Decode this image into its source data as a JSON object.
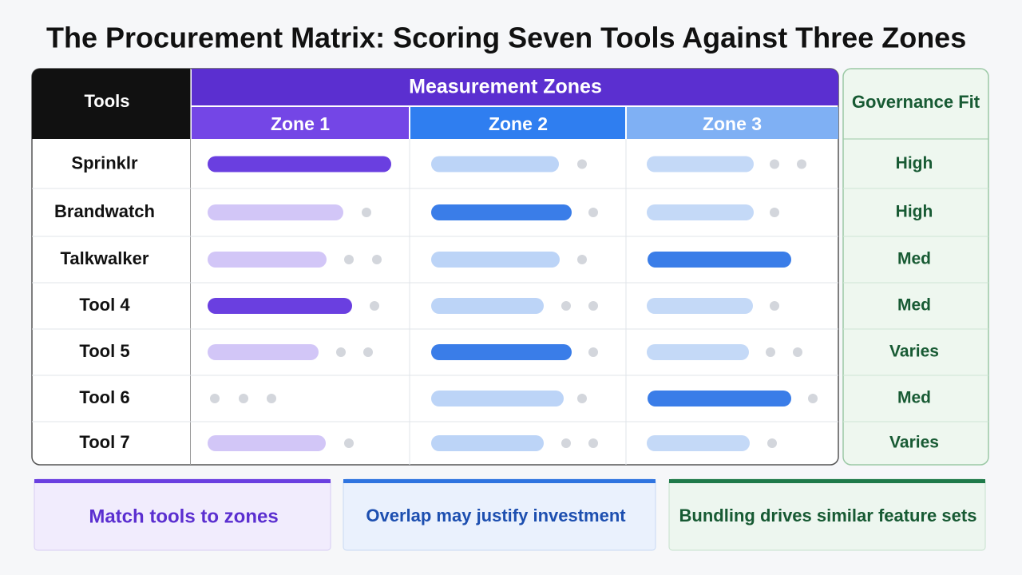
{
  "title": "The Procurement Matrix: Scoring Seven Tools Against Three Zones",
  "table": {
    "tools_header": "Tools",
    "zones_header": "Measurement Zones",
    "zones": [
      "Zone 1",
      "Zone 2",
      "Zone 3"
    ],
    "fit_header": "Governance Fit",
    "rows": [
      {
        "tool": "Sprinklr",
        "fit": "High"
      },
      {
        "tool": "Brandwatch",
        "fit": "High"
      },
      {
        "tool": "Talkwalker",
        "fit": "Med"
      },
      {
        "tool": "Tool 4",
        "fit": "Med"
      },
      {
        "tool": "Tool 5",
        "fit": "Varies"
      },
      {
        "tool": "Tool 6",
        "fit": "Med"
      },
      {
        "tool": "Tool 7",
        "fit": "Varies"
      }
    ]
  },
  "callouts": [
    "Match tools to zones",
    "Overlap may justify investment",
    "Bundling drives similar feature sets"
  ]
}
